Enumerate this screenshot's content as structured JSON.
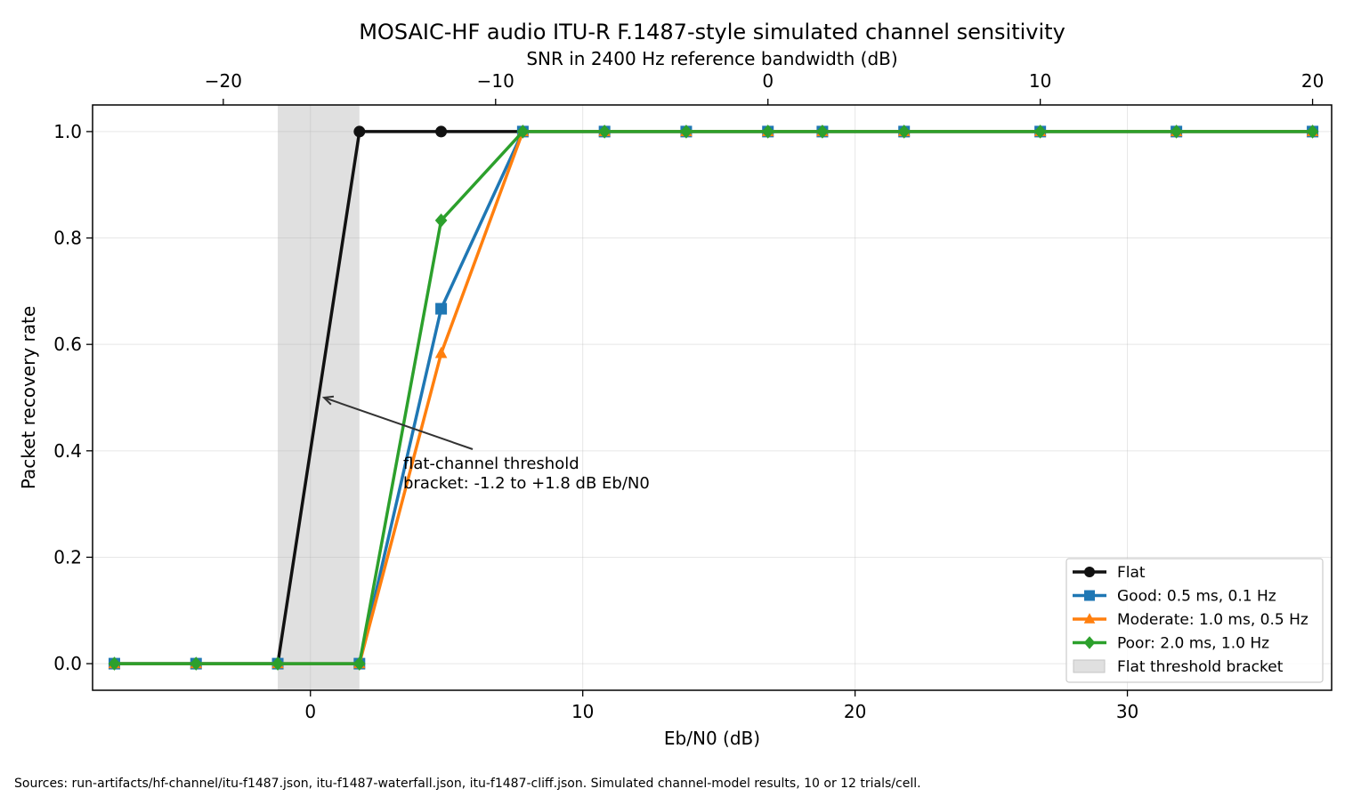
{
  "chart_data": {
    "type": "line",
    "title": "MOSAIC-HF audio ITU-R F.1487-style simulated channel sensitivity",
    "xlabel": "Eb/N0 (dB)",
    "ylabel": "Packet recovery rate",
    "x2label": "SNR in 2400 Hz reference bandwidth (dB)",
    "xlim": [
      -8,
      37.5
    ],
    "ylim": [
      -0.05,
      1.05
    ],
    "x_ticks": [
      0,
      10,
      20,
      30
    ],
    "y_ticks": [
      0.0,
      0.2,
      0.4,
      0.6,
      0.8,
      1.0
    ],
    "y_tick_labels": [
      "0.0",
      "0.2",
      "0.4",
      "0.6",
      "0.8",
      "1.0"
    ],
    "x2_ticks": [
      -20,
      -10,
      0,
      10,
      20
    ],
    "x2_tick_labels": [
      "−20",
      "−10",
      "0",
      "10",
      "20"
    ],
    "x2_offset_db": -16.8,
    "grid": true,
    "legend_position": "lower-right",
    "threshold_band": {
      "label": "Flat threshold bracket",
      "x_range": [
        -1.2,
        1.8
      ],
      "color": "#e0e0e0"
    },
    "annotation": {
      "text_line1": "flat-channel threshold",
      "text_line2": "bracket: -1.2 to +1.8 dB Eb/N0",
      "points_to": [
        0.5,
        0.5
      ],
      "text_at": [
        3.4,
        0.37
      ]
    },
    "x": [
      -7.2,
      -4.2,
      -1.2,
      1.8,
      4.8,
      7.8,
      10.8,
      13.8,
      16.8,
      18.8,
      21.8,
      26.8,
      31.8,
      36.8
    ],
    "series": [
      {
        "name": "Flat",
        "color": "#111111",
        "marker": "circle",
        "values": [
          0,
          0,
          0,
          1.0,
          1.0,
          1.0,
          1.0,
          1.0,
          1.0,
          1.0,
          1.0,
          1.0,
          1.0,
          1.0
        ]
      },
      {
        "name": "Good: 0.5 ms, 0.1 Hz",
        "color": "#1f77b4",
        "marker": "square",
        "values": [
          0,
          0,
          0,
          0,
          0.667,
          1.0,
          1.0,
          1.0,
          1.0,
          1.0,
          1.0,
          1.0,
          1.0,
          1.0
        ]
      },
      {
        "name": "Moderate: 1.0 ms, 0.5 Hz",
        "color": "#ff7f0e",
        "marker": "triangle",
        "values": [
          0,
          0,
          0,
          0,
          0.583,
          1.0,
          1.0,
          1.0,
          1.0,
          1.0,
          1.0,
          1.0,
          1.0,
          1.0
        ]
      },
      {
        "name": "Poor: 2.0 ms, 1.0 Hz",
        "color": "#2ca02c",
        "marker": "diamond",
        "values": [
          0,
          0,
          0,
          0,
          0.833,
          1.0,
          1.0,
          1.0,
          1.0,
          1.0,
          1.0,
          1.0,
          1.0,
          1.0
        ]
      }
    ]
  },
  "footer": "Sources: run-artifacts/hf-channel/itu-f1487.json, itu-f1487-waterfall.json, itu-f1487-cliff.json. Simulated channel-model results, 10 or 12 trials/cell."
}
